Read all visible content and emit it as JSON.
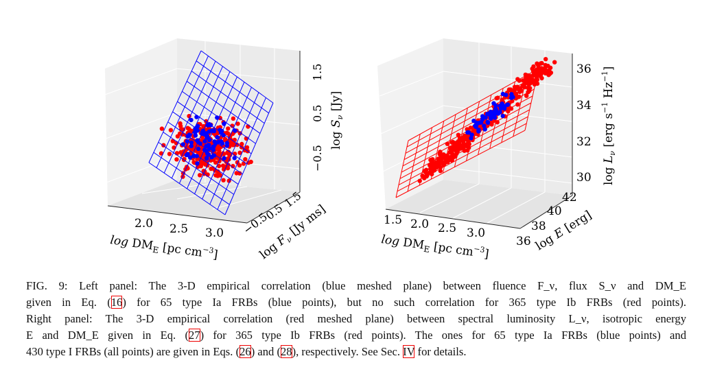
{
  "panels": [
    {
      "id": "left",
      "plane_color": "#0000ff",
      "x_ticks": [
        "2.0",
        "2.5",
        "3.0"
      ],
      "y_ticks": [
        "−0.5",
        "0.5",
        "1.5"
      ],
      "z_ticks": [
        "−0.5",
        "0.5",
        "1.5"
      ],
      "x_label": "log DM_E [pc cm^−3]",
      "y_label": "log F_ν [Jy ms]",
      "z_label": "log S_ν [Jy]"
    },
    {
      "id": "right",
      "plane_color": "#ff0000",
      "x_ticks": [
        "1.5",
        "2.0",
        "2.5",
        "3.0"
      ],
      "y_ticks": [
        "36",
        "38",
        "40",
        "42"
      ],
      "z_ticks": [
        "30",
        "32",
        "34",
        "36"
      ],
      "x_label": "log DM_E [pc cm^−3]",
      "y_label": "log E [erg]",
      "z_label": "log L_ν [erg s^−1 Hz^−1]"
    }
  ],
  "colors": {
    "type_ia": "#0000ff",
    "type_ib": "#ff0000",
    "pane": "#ebebeb"
  },
  "caption": {
    "l1": "FIG. 9: Left panel: The 3-D empirical correlation (blue meshed plane) between fluence F_ν, flux S_ν and DM_E",
    "l2a": "given in Eq. (",
    "ref16": "16",
    "l2b": ") for 65 type Ia FRBs (blue points), but no such correlation for 365 type Ib FRBs (red points).",
    "l3": "Right panel: The 3-D empirical correlation (red meshed plane) between spectral luminosity L_ν, isotropic energy",
    "l4a": "E and DM_E given in Eq. (",
    "ref27": "27",
    "l4b": ") for 365 type Ib FRBs (red points). The ones for 65 type Ia FRBs (blue points) and",
    "l5a": "430 type I FRBs (all points) are given in Eqs. (",
    "ref26": "26",
    "l5b": ") and (",
    "ref28": "28",
    "l5c": "), respectively. See Sec. ",
    "refsec": "IV",
    "l5d": " for details."
  }
}
